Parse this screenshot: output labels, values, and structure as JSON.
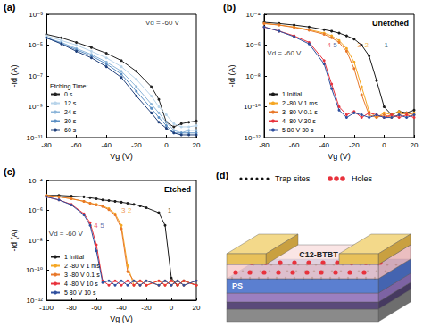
{
  "chart_data": [
    {
      "type": "line",
      "title": "(a)",
      "x_label": "Vg (V)",
      "y_label": "-Id (A)",
      "log": "y",
      "grid": false,
      "legend": "lower left",
      "legend_title": "Etching Time:",
      "marker": "circle",
      "line_style": "solid",
      "xlim": [
        -80,
        20
      ],
      "xticks": [
        -80,
        -60,
        -40,
        -20,
        0,
        20
      ],
      "ylim": [
        1e-11,
        0.001
      ],
      "yticks": [
        {
          "value": 1e-11,
          "label": "10⁻¹¹"
        },
        {
          "value": 1e-09,
          "label": "10⁻⁹"
        },
        {
          "value": 1e-07,
          "label": "10⁻⁷"
        },
        {
          "value": 1e-05,
          "label": "10⁻⁵"
        },
        {
          "value": 0.001,
          "label": "10⁻³"
        }
      ],
      "annotations": [
        {
          "text": "Vd = -60 V",
          "x": -14,
          "y": 0.0003,
          "color": "#000000"
        }
      ],
      "x": [
        -80,
        -70,
        -60,
        -50,
        -40,
        -30,
        -20,
        -10,
        -5,
        0,
        5,
        10,
        15,
        20
      ],
      "series": [
        {
          "name": "0 s",
          "color": "#222222",
          "values": [
            5e-05,
            3e-05,
            1.5e-05,
            7e-06,
            3e-06,
            1e-06,
            2e-07,
            2e-08,
            3e-09,
            1e-10,
            5e-11,
            8e-11,
            1e-10,
            1.2e-10
          ]
        },
        {
          "name": "12 s",
          "color": "#b8d4ea",
          "values": [
            4e-05,
            2e-05,
            1e-05,
            4e-06,
            1.5e-06,
            4e-07,
            6e-08,
            5e-09,
            1e-09,
            3e-10,
            8e-11,
            5e-11,
            5e-11,
            6e-11
          ]
        },
        {
          "name": "24 s",
          "color": "#8cb5d9",
          "values": [
            3e-05,
            1.5e-05,
            6e-06,
            2.5e-06,
            8e-07,
            2e-07,
            2e-08,
            1.5e-09,
            4e-10,
            1e-10,
            3e-11,
            2e-11,
            3e-11,
            3e-11
          ]
        },
        {
          "name": "30 s",
          "color": "#5b8fc4",
          "values": [
            3e-05,
            1.3e-05,
            5e-06,
            2e-06,
            6e-07,
            1.3e-07,
            1e-08,
            8e-10,
            2e-10,
            6e-11,
            2e-11,
            2e-11,
            2e-11,
            2e-11
          ]
        },
        {
          "name": "60 s",
          "color": "#1f3f7a",
          "values": [
            3e-05,
            1.2e-05,
            4e-06,
            1.5e-06,
            4e-07,
            8e-08,
            5e-09,
            4e-10,
            1e-10,
            4e-11,
            2e-11,
            1.5e-11,
            1.5e-11,
            1.5e-11
          ]
        }
      ]
    },
    {
      "type": "line",
      "title": "(b)",
      "subtitle": "Unetched",
      "x_label": "Vg (V)",
      "y_label": "-Id (A)",
      "log": "y",
      "grid": false,
      "legend": "lower left",
      "marker": "circle",
      "line_style": "solid",
      "xlim": [
        -80,
        20
      ],
      "xticks": [
        -80,
        -60,
        -40,
        -20,
        0,
        20
      ],
      "ylim": [
        1e-12,
        0.0001
      ],
      "yticks": [
        {
          "value": 1e-12,
          "label": "10⁻¹²"
        },
        {
          "value": 1e-10,
          "label": "10⁻¹⁰"
        },
        {
          "value": 1e-08,
          "label": "10⁻⁸"
        },
        {
          "value": 1e-06,
          "label": "10⁻⁶"
        },
        {
          "value": 0.0001,
          "label": "10⁻⁴"
        }
      ],
      "annotations": [
        {
          "text": "Vd = -60 V",
          "x": -78,
          "y": 3e-07,
          "color": "#000000"
        },
        {
          "text": "4",
          "x": -38,
          "y": 1e-06,
          "color": "#e8323c"
        },
        {
          "text": "5",
          "x": -34,
          "y": 1e-06,
          "color": "#2f4f9e"
        },
        {
          "text": "3",
          "x": -18,
          "y": 1e-06,
          "color": "#e8782a"
        },
        {
          "text": "2",
          "x": -13,
          "y": 1e-06,
          "color": "#f5a623"
        },
        {
          "text": "1",
          "x": 0,
          "y": 1e-06,
          "color": "#1a1a1a"
        }
      ],
      "x": [
        -80,
        -70,
        -60,
        -50,
        -40,
        -35,
        -30,
        -25,
        -20,
        -15,
        -10,
        -5,
        0,
        5,
        10,
        15,
        20
      ],
      "series": [
        {
          "name": "1 Initial",
          "color": "#1a1a1a",
          "values": [
            3e-05,
            2.5e-05,
            2e-05,
            1.5e-05,
            1e-05,
            8e-06,
            6e-06,
            4e-06,
            2.5e-06,
            1e-06,
            2e-07,
            5e-09,
            1e-10,
            3e-11,
            5e-11,
            4e-11,
            6e-11
          ]
        },
        {
          "name": "2 -80 V 1 ms",
          "color": "#f5a623",
          "values": [
            2.5e-05,
            2e-05,
            1.5e-05,
            1e-05,
            6e-06,
            4e-06,
            2e-06,
            6e-07,
            8e-08,
            2e-09,
            5e-11,
            2e-11,
            4e-11,
            3e-11,
            5e-11,
            3e-11,
            4e-11
          ]
        },
        {
          "name": "3 -80 V 0.1 s",
          "color": "#e8782a",
          "values": [
            2.5e-05,
            2e-05,
            1.4e-05,
            9e-06,
            5e-06,
            3e-06,
            1.5e-06,
            4e-07,
            3e-08,
            6e-10,
            3e-11,
            2e-11,
            3e-11,
            2e-11,
            3e-11,
            4e-11,
            3e-11
          ]
        },
        {
          "name": "4 -80 V 30 s",
          "color": "#e8323c",
          "values": [
            1.5e-05,
            8e-06,
            4e-06,
            1.5e-06,
            1e-07,
            3e-09,
            1e-10,
            3e-11,
            5e-11,
            2e-11,
            4e-11,
            3e-11,
            2e-11,
            3e-11,
            2e-11,
            3e-11,
            2e-11
          ]
        },
        {
          "name": "5 80 V 30 s",
          "color": "#2f4f9e",
          "values": [
            1.5e-05,
            8e-06,
            3.5e-06,
            1.2e-06,
            6e-08,
            1.5e-09,
            6e-11,
            2e-11,
            4e-11,
            3e-11,
            2e-11,
            3e-11,
            2e-11,
            2e-11,
            3e-11,
            2e-11,
            3e-11
          ]
        }
      ]
    },
    {
      "type": "line",
      "title": "(c)",
      "subtitle": "Etched",
      "x_label": "Vg (V)",
      "y_label": "-Id (A)",
      "log": "y",
      "grid": false,
      "legend": "lower left",
      "marker": "circle",
      "line_style": "solid",
      "xlim": [
        -100,
        20
      ],
      "xticks": [
        -100,
        -80,
        -60,
        -40,
        -20,
        0,
        20
      ],
      "ylim": [
        1e-12,
        0.0001
      ],
      "yticks": [
        {
          "value": 1e-12,
          "label": "10⁻¹²"
        },
        {
          "value": 1e-10,
          "label": "10⁻¹⁰"
        },
        {
          "value": 1e-08,
          "label": "10⁻⁸"
        },
        {
          "value": 1e-06,
          "label": "10⁻⁶"
        },
        {
          "value": 0.0001,
          "label": "10⁻⁴"
        }
      ],
      "annotations": [
        {
          "text": "Vd = -60 V",
          "x": -98,
          "y": 3e-08,
          "color": "#000000"
        },
        {
          "text": "4",
          "x": -62,
          "y": 1e-07,
          "color": "#e8323c"
        },
        {
          "text": "5",
          "x": -57,
          "y": 1e-07,
          "color": "#2f4f9e"
        },
        {
          "text": "3",
          "x": -40,
          "y": 1e-06,
          "color": "#e8782a"
        },
        {
          "text": "2",
          "x": -35,
          "y": 1e-06,
          "color": "#f5a623"
        },
        {
          "text": "1",
          "x": -3,
          "y": 1e-06,
          "color": "#1a1a1a"
        }
      ],
      "x": [
        -100,
        -90,
        -80,
        -70,
        -65,
        -60,
        -55,
        -50,
        -45,
        -40,
        -35,
        -30,
        -25,
        -20,
        -10,
        -5,
        0,
        5,
        10,
        20
      ],
      "series": [
        {
          "name": "1 Initial",
          "color": "#1a1a1a",
          "values": [
            1e-05,
            1e-05,
            9e-06,
            8e-06,
            7e-06,
            6e-06,
            5e-06,
            4.5e-06,
            4e-06,
            3.5e-06,
            3e-06,
            2.5e-06,
            2e-06,
            1.5e-06,
            7e-07,
            1e-07,
            3e-11,
            1e-11,
            2e-11,
            1e-11
          ]
        },
        {
          "name": "2 -80 V 1 ms",
          "color": "#f5a623",
          "values": [
            1e-05,
            8e-06,
            6e-06,
            4e-06,
            3e-06,
            2.5e-06,
            2e-06,
            1.3e-06,
            6e-07,
            1e-07,
            2e-10,
            1e-11,
            2e-11,
            1e-11,
            2e-11,
            1e-11,
            2e-11,
            1e-11,
            2e-11,
            1e-11
          ]
        },
        {
          "name": "3 -80 V 0.1 s",
          "color": "#e8782a",
          "values": [
            1e-05,
            8e-06,
            6e-06,
            4e-06,
            3e-06,
            2.3e-06,
            1.8e-06,
            1.1e-06,
            5e-07,
            6e-08,
            8e-11,
            2e-11,
            1e-11,
            2e-11,
            1e-11,
            2e-11,
            1e-11,
            2e-11,
            1e-11,
            2e-11
          ]
        },
        {
          "name": "4 -80 V 10 s",
          "color": "#e8323c",
          "values": [
            8e-06,
            5e-06,
            2.5e-06,
            6e-07,
            1.5e-07,
            5e-09,
            2e-11,
            1e-11,
            2e-11,
            1e-11,
            2e-11,
            1e-11,
            2e-11,
            1e-11,
            2e-11,
            1e-11,
            2e-11,
            1e-11,
            2e-11,
            1e-11
          ]
        },
        {
          "name": "5 80 V 10 s",
          "color": "#2f4f9e",
          "values": [
            8e-06,
            5e-06,
            2.3e-06,
            5e-07,
            1e-07,
            2e-09,
            1.5e-11,
            2e-11,
            1e-11,
            2e-11,
            1e-11,
            2e-11,
            1e-11,
            2e-11,
            1e-11,
            2e-11,
            1e-11,
            2e-11,
            1e-11,
            2e-11
          ]
        }
      ]
    }
  ],
  "diagram": {
    "title": "(d)",
    "legend": [
      {
        "label": "Trap sites",
        "color": "#111111"
      },
      {
        "label": "Holes",
        "color": "#e8323c"
      }
    ],
    "layers": [
      "C12-BTBT",
      "PS"
    ]
  }
}
